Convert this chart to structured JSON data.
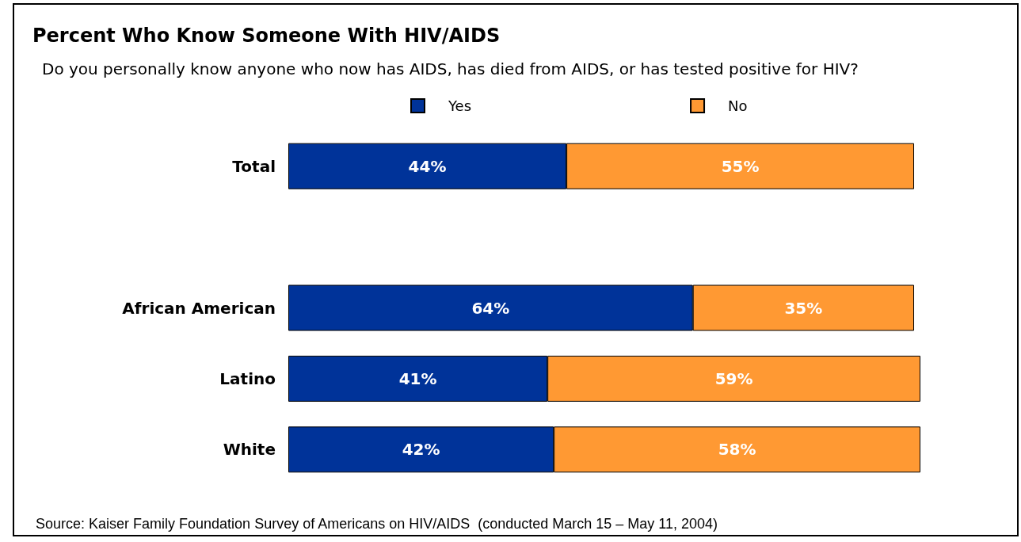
{
  "chart_data": {
    "type": "bar",
    "orientation": "horizontal",
    "stacked": true,
    "title": "Percent Who Know Someone With HIV/AIDS",
    "subtitle": "Do you personally know anyone who now has AIDS, has died from AIDS, or has tested positive for HIV?",
    "categories": [
      "Total",
      null,
      "African American",
      "Latino",
      "White"
    ],
    "series": [
      {
        "name": "Yes",
        "color": "#003399",
        "values": [
          44,
          null,
          64,
          41,
          42
        ],
        "value_labels": [
          "44%",
          null,
          "64%",
          "41%",
          "42%"
        ]
      },
      {
        "name": "No",
        "color": "#ff9933",
        "values": [
          55,
          null,
          35,
          59,
          58
        ],
        "value_labels": [
          "55%",
          null,
          "35%",
          "59%",
          "58%"
        ]
      }
    ],
    "legend": "top",
    "annotations": [
      "Source: Kaiser Family Foundation Survey of Americans on HIV/AIDS  (conducted March 15 – May 11, 2004)"
    ]
  }
}
